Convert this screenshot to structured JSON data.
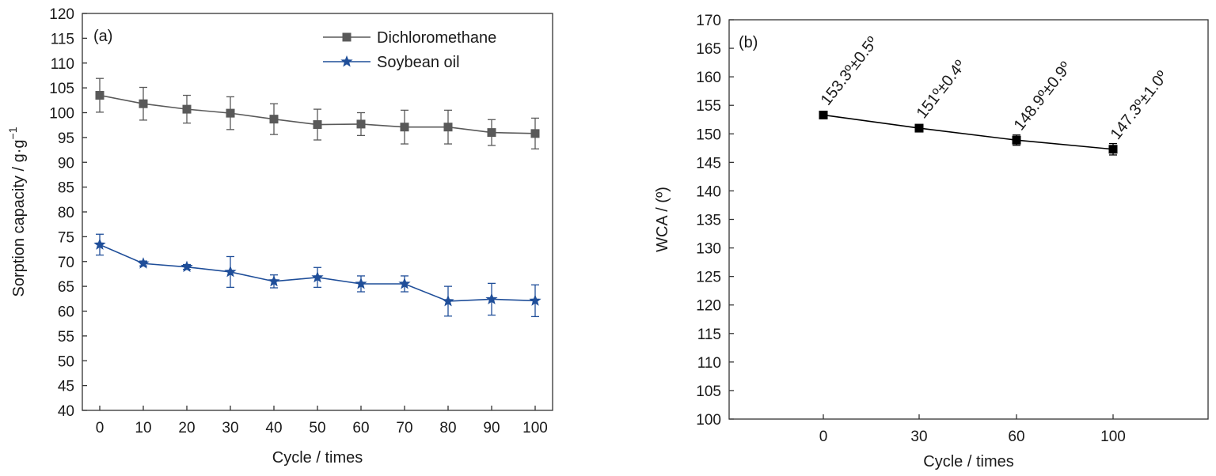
{
  "chart_data": [
    {
      "type": "line",
      "panel_label": "(a)",
      "xlabel": "Cycle / times",
      "ylabel": "Sorption capacity / g·g",
      "ylabel_superscript": "−1",
      "x": [
        0,
        10,
        20,
        30,
        40,
        50,
        60,
        70,
        80,
        90,
        100
      ],
      "xticks": [
        "0",
        "10",
        "20",
        "30",
        "40",
        "50",
        "60",
        "70",
        "80",
        "90",
        "100"
      ],
      "xlim": [
        -4,
        104
      ],
      "ylim": [
        40,
        120
      ],
      "yticks": [
        40,
        45,
        50,
        55,
        60,
        65,
        70,
        75,
        80,
        85,
        90,
        95,
        100,
        105,
        110,
        115,
        120
      ],
      "grid": false,
      "legend_position": "top-right",
      "series": [
        {
          "name": "Dichloromethane",
          "marker": "square",
          "color": "#595959",
          "values": [
            103.5,
            101.8,
            100.7,
            99.9,
            98.7,
            97.6,
            97.7,
            97.1,
            97.1,
            96.0,
            95.8
          ],
          "errors": [
            3.4,
            3.3,
            2.8,
            3.3,
            3.1,
            3.1,
            2.3,
            3.4,
            3.4,
            2.6,
            3.1
          ]
        },
        {
          "name": "Soybean oil",
          "marker": "star",
          "color": "#1f4e99",
          "values": [
            73.4,
            69.6,
            68.9,
            67.9,
            66.0,
            66.8,
            65.5,
            65.5,
            62.0,
            62.4,
            62.1
          ],
          "errors": [
            2.1,
            0.5,
            0.5,
            3.1,
            1.3,
            2.0,
            1.6,
            1.6,
            3.0,
            3.2,
            3.2
          ]
        }
      ]
    },
    {
      "type": "line",
      "panel_label": "(b)",
      "xlabel": "Cycle / times",
      "ylabel": "WCA / (º)",
      "categories": [
        "0",
        "30",
        "60",
        "100"
      ],
      "ylim": [
        100,
        170
      ],
      "yticks": [
        100,
        105,
        110,
        115,
        120,
        125,
        130,
        135,
        140,
        145,
        150,
        155,
        160,
        165,
        170
      ],
      "grid": false,
      "series": [
        {
          "marker": "square",
          "color": "#000000",
          "values": [
            153.3,
            151.0,
            148.9,
            147.3
          ],
          "errors": [
            0.5,
            0.4,
            0.9,
            1.0
          ],
          "labels": [
            "153.3º±0.5º",
            "151º±0.4º",
            "148.9º±0.9º",
            "147.3º±1.0º"
          ]
        }
      ]
    }
  ]
}
